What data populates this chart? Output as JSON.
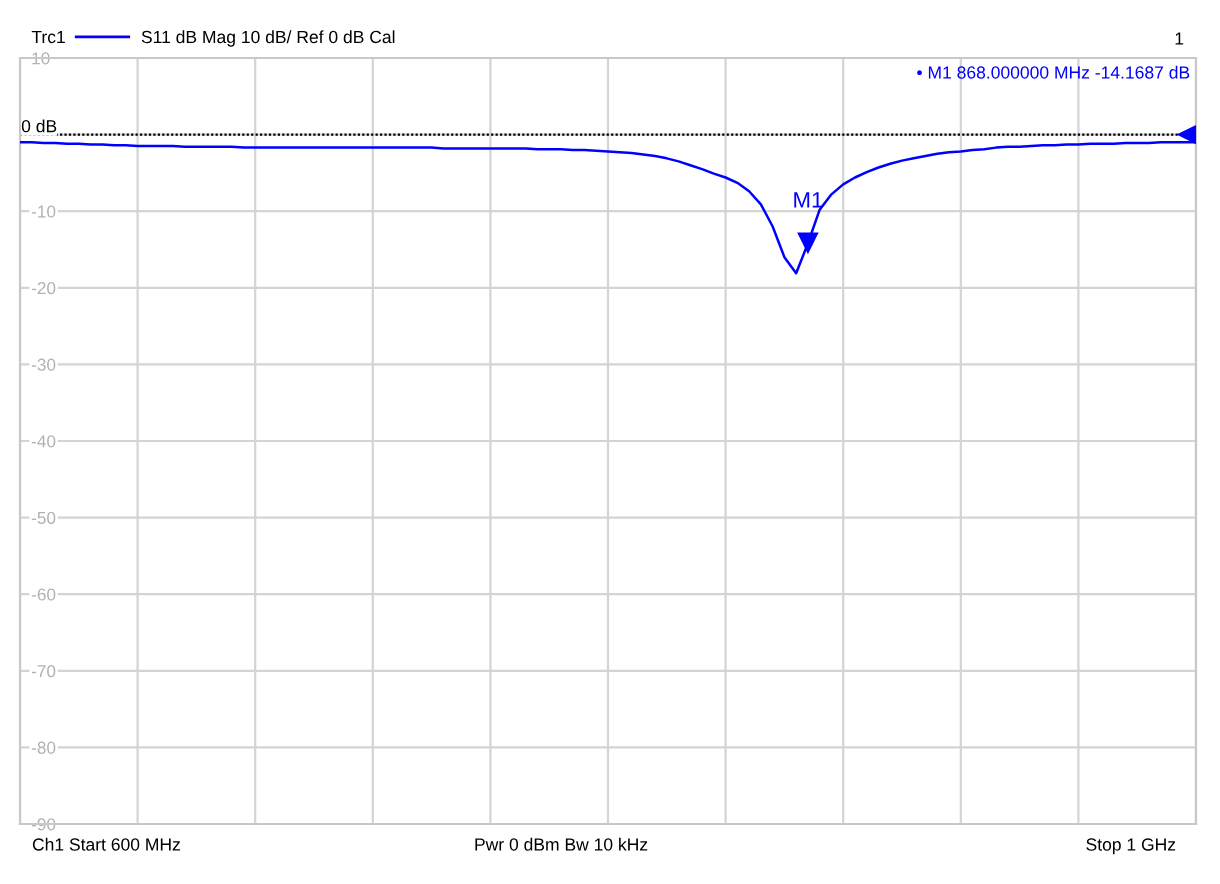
{
  "chart_data": {
    "type": "line",
    "legend_title": "Trc1",
    "legend": "top left",
    "line_style": "solid",
    "grid": true,
    "tick_labels": "y",
    "categories": [
      null,
      null,
      null,
      null,
      null,
      null,
      null,
      null,
      null,
      null,
      null,
      null,
      null,
      null,
      null,
      null,
      null,
      null,
      null,
      null,
      null,
      null,
      null,
      null,
      null,
      null,
      null,
      null,
      null,
      null,
      null,
      null,
      null,
      null,
      null,
      null,
      null,
      null,
      null,
      null,
      null,
      null,
      null,
      null,
      null,
      null,
      null,
      null,
      null,
      null,
      null,
      null,
      null,
      null,
      null,
      null,
      null,
      null,
      null,
      null,
      null,
      null,
      null,
      null,
      null,
      null,
      null,
      null,
      null,
      null,
      null,
      null,
      null,
      null,
      null,
      null,
      null,
      null,
      null,
      null,
      null,
      null,
      null,
      null,
      null,
      null,
      null,
      null,
      null,
      null,
      null,
      null,
      null,
      null,
      null,
      null,
      null,
      null,
      null,
      null,
      null
    ],
    "ylim": [
      -90,
      10
    ],
    "yticks": [
      10,
      {
        "value": 0,
        "label": null
      },
      -10,
      -20,
      -30,
      -40,
      -50,
      -60,
      -70,
      -80,
      -90
    ],
    "series": [
      {
        "name": "S11 dB Mag 10 dB/ Ref 0 dB Cal",
        "color": "#0000ff",
        "values": [
          -1.0,
          -1.0,
          -1.1,
          -1.1,
          -1.2,
          -1.2,
          -1.3,
          -1.3,
          -1.4,
          -1.4,
          -1.5,
          -1.5,
          -1.5,
          -1.5,
          -1.6,
          -1.6,
          -1.6,
          -1.6,
          -1.6,
          -1.7,
          -1.7,
          -1.7,
          -1.7,
          -1.7,
          -1.7,
          -1.7,
          -1.7,
          -1.7,
          -1.7,
          -1.7,
          -1.7,
          -1.7,
          -1.7,
          -1.7,
          -1.7,
          -1.7,
          -1.8,
          -1.8,
          -1.8,
          -1.8,
          -1.8,
          -1.8,
          -1.8,
          -1.8,
          -1.9,
          -1.9,
          -1.9,
          -2.0,
          -2.0,
          -2.1,
          -2.2,
          -2.3,
          -2.4,
          -2.6,
          -2.8,
          -3.1,
          -3.5,
          -4.0,
          -4.5,
          -5.1,
          -5.6,
          -6.3,
          -7.4,
          -9.1,
          -12.0,
          -16.0,
          -18.1,
          -14.2,
          -9.8,
          -7.8,
          -6.5,
          -5.6,
          -4.9,
          -4.3,
          -3.8,
          -3.4,
          -3.1,
          -2.8,
          -2.5,
          -2.3,
          -2.2,
          -2.0,
          -1.9,
          -1.7,
          -1.6,
          -1.6,
          -1.5,
          -1.4,
          -1.4,
          -1.3,
          -1.3,
          -1.2,
          -1.2,
          -1.2,
          -1.1,
          -1.1,
          -1.1,
          -1.0,
          -1.0,
          -1.0,
          -1.0
        ]
      },
      {
        "type": "scatter",
        "color": "#0000ff",
        "marker": "triangle",
        "values": [
          null,
          null,
          null,
          null,
          null,
          null,
          null,
          null,
          null,
          null,
          null,
          null,
          null,
          null,
          null,
          null,
          null,
          null,
          null,
          null,
          null,
          null,
          null,
          null,
          null,
          null,
          null,
          null,
          null,
          null,
          null,
          null,
          null,
          null,
          null,
          null,
          null,
          null,
          null,
          null,
          null,
          null,
          null,
          null,
          null,
          null,
          null,
          null,
          null,
          null,
          null,
          null,
          null,
          null,
          null,
          null,
          null,
          null,
          null,
          null,
          null,
          null,
          null,
          null,
          null,
          null,
          null,
          -14.2,
          null,
          null,
          null,
          null,
          null,
          null,
          null,
          null,
          null,
          null,
          null,
          null,
          null,
          null,
          null,
          null,
          null,
          null,
          null,
          null,
          null,
          null,
          null,
          null,
          null,
          null,
          null,
          null,
          null,
          null,
          null,
          null,
          null
        ]
      }
    ],
    "ref_lines": [
      {
        "axis": "y",
        "value": 0,
        "label": "0 dB",
        "color": "#000000",
        "line_style": "dotted"
      }
    ],
    "annotations": [
      "1",
      "M1",
      "• M1 868.000000 MHz -14.1687 dB",
      "Ch1 Start 600 MHz",
      "Pwr 0 dBm Bw 10 kHz",
      "Stop 1 GHz"
    ]
  }
}
